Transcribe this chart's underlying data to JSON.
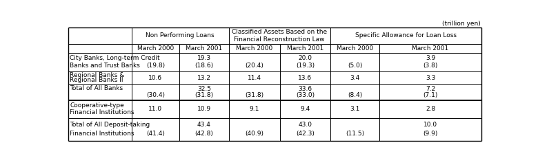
{
  "title_note": "(trillion yen)",
  "group_headers": [
    "Non Performing Loans",
    "Classified Assets Based on the\nFinancial Reconstruction Law",
    "Specific Allowance for Loan Loss"
  ],
  "sub_headers": [
    "March 2000",
    "March 2001",
    "March 2000",
    "March 2001",
    "March 2000",
    "March 2001"
  ],
  "rows": [
    {
      "label1": "City Banks, Long-term Credit",
      "label2": "Banks and Trust Banks",
      "v_top": [
        "",
        "19.3",
        "",
        "20.0",
        "",
        "3.9"
      ],
      "v_bot": [
        "(19.8)",
        "(18.6)",
        "(20.4)",
        "(19.3)",
        "(5.0)",
        "(3.8)"
      ]
    },
    {
      "label1": "Regional Banks &",
      "label2": "Regional Banks II",
      "v_top": [
        "10.6",
        "13.2",
        "11.4",
        "13.6",
        "3.4",
        "3.3"
      ],
      "v_bot": [
        "",
        "",
        "",
        "",
        "",
        ""
      ]
    },
    {
      "label1": "Total of All Banks",
      "label2": "",
      "v_top": [
        "",
        "32.5",
        "",
        "33.6",
        "",
        "7.2"
      ],
      "v_bot": [
        "(30.4)",
        "(31.8)",
        "(31.8)",
        "(33.0)",
        "(8.4)",
        "(7.1)"
      ]
    },
    {
      "label1": "Cooperative-type",
      "label2": "Financial Institutions",
      "v_top": [
        "11.0",
        "10.9",
        "9.1",
        "9.4",
        "3.1",
        "2.8"
      ],
      "v_bot": [
        "",
        "",
        "",
        "",
        "",
        ""
      ]
    },
    {
      "label1": "Total of All Deposit-taking",
      "label2": "Financial Institutions",
      "v_top": [
        "",
        "43.4",
        "",
        "43.0",
        "",
        "10.0"
      ],
      "v_bot": [
        "(41.4)",
        "(42.8)",
        "(40.9)",
        "(42.3)",
        "(11.5)",
        "(9.9)"
      ]
    }
  ],
  "bg_color": "#ffffff",
  "line_color": "#000000",
  "font_size": 6.5
}
